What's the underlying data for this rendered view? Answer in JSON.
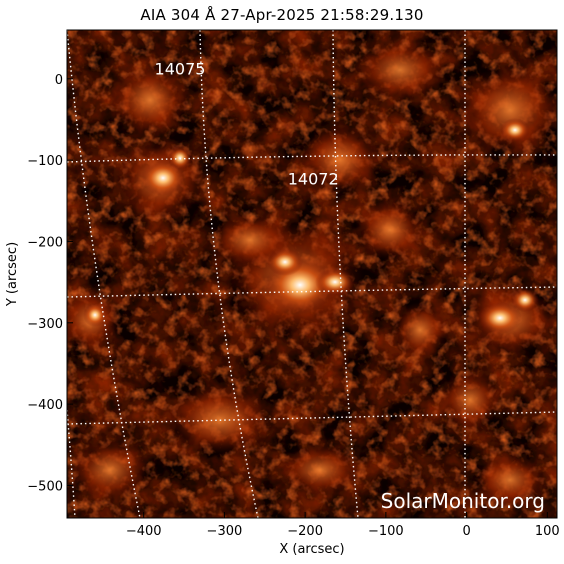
{
  "title": "AIA 304 Å 27-Apr-2025 21:58:29.130",
  "x_axis": {
    "label": "X (arcsec)",
    "range": [
      -495,
      112
    ],
    "ticks": [
      {
        "value": -400,
        "label": "−400"
      },
      {
        "value": -300,
        "label": "−300"
      },
      {
        "value": -200,
        "label": "−200"
      },
      {
        "value": -100,
        "label": "−100"
      },
      {
        "value": 0,
        "label": "0"
      },
      {
        "value": 100,
        "label": "100"
      }
    ]
  },
  "y_axis": {
    "label": "Y (arcsec)",
    "range": [
      -540,
      60
    ],
    "ticks": [
      {
        "value": 0,
        "label": "0"
      },
      {
        "value": -100,
        "label": "−100"
      },
      {
        "value": -200,
        "label": "−200"
      },
      {
        "value": -300,
        "label": "−300"
      },
      {
        "value": -400,
        "label": "−400"
      },
      {
        "value": -500,
        "label": "−500"
      }
    ]
  },
  "regions": [
    {
      "label": "14075",
      "x": -355,
      "y": 5
    },
    {
      "label": "14072",
      "x": -190,
      "y": -130
    }
  ],
  "watermark": "SolarMonitor.org",
  "colors": {
    "background": "#000000",
    "grid": "#ffffff",
    "colormap": [
      "#000000",
      "#3a0500",
      "#7a1a00",
      "#b84000",
      "#e07020",
      "#ffb060",
      "#ffffff"
    ]
  }
}
